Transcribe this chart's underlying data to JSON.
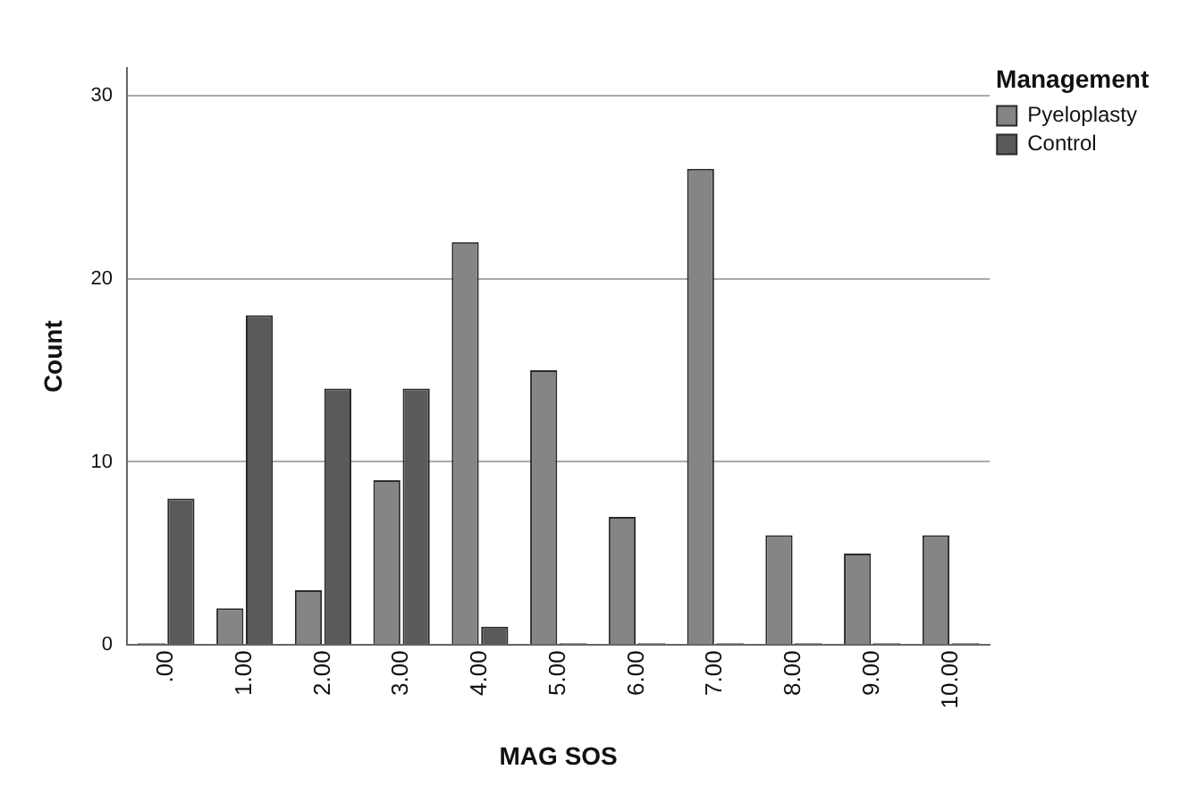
{
  "chart_data": {
    "type": "bar",
    "xlabel": "MAG SOS",
    "ylabel": "Count",
    "legend_title": "Management",
    "categories": [
      ".00",
      "1.00",
      "2.00",
      "3.00",
      "4.00",
      "5.00",
      "6.00",
      "7.00",
      "8.00",
      "9.00",
      "10.00"
    ],
    "series": [
      {
        "name": "Pyeloplasty",
        "color": "#858585",
        "values": [
          0,
          2,
          3,
          9,
          22,
          15,
          7,
          26,
          6,
          5,
          6
        ]
      },
      {
        "name": "Control",
        "color": "#5a5a5a",
        "values": [
          8,
          18,
          14,
          14,
          1,
          0,
          0,
          0,
          0,
          0,
          0
        ]
      }
    ],
    "ylim": [
      0,
      31.5
    ],
    "yticks": [
      0,
      10,
      20,
      30
    ],
    "grid": "y",
    "legend": "top right"
  }
}
